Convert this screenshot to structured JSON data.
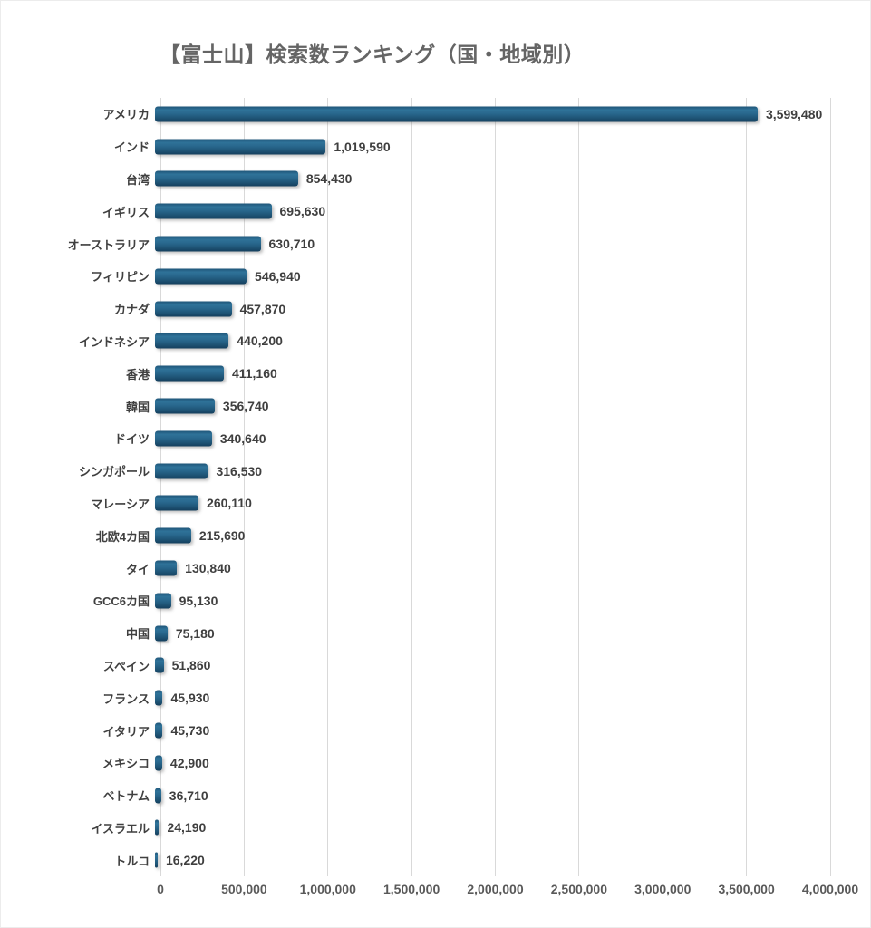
{
  "title": "【富士山】検索数ランキング（国・地域別）",
  "chart_data": {
    "type": "bar",
    "orientation": "horizontal",
    "title": "【富士山】検索数ランキング（国・地域別）",
    "xlabel": "",
    "ylabel": "",
    "xlim": [
      0,
      4000000
    ],
    "grid": "vertical major gridlines every 500,000",
    "legend_position": "none",
    "bar_color": "#26648b",
    "grid_color": "#d9d9d9",
    "categories": [
      "アメリカ",
      "インド",
      "台湾",
      "イギリス",
      "オーストラリア",
      "フィリピン",
      "カナダ",
      "インドネシア",
      "香港",
      "韓国",
      "ドイツ",
      "シンガポール",
      "マレーシア",
      "北欧4カ国",
      "タイ",
      "GCC6カ国",
      "中国",
      "スペイン",
      "フランス",
      "イタリア",
      "メキシコ",
      "ベトナム",
      "イスラエル",
      "トルコ"
    ],
    "values": [
      3599480,
      1019590,
      854430,
      695630,
      630710,
      546940,
      457870,
      440200,
      411160,
      356740,
      340640,
      316530,
      260110,
      215690,
      130840,
      95130,
      75180,
      51860,
      45930,
      45730,
      42900,
      36710,
      24190,
      16220
    ],
    "value_labels": [
      "3,599,480",
      "1,019,590",
      "854,430",
      "695,630",
      "630,710",
      "546,940",
      "457,870",
      "440,200",
      "411,160",
      "356,740",
      "340,640",
      "316,530",
      "260,110",
      "215,690",
      "130,840",
      "95,130",
      "75,180",
      "51,860",
      "45,930",
      "45,730",
      "42,900",
      "36,710",
      "24,190",
      "16,220"
    ],
    "x_tick_values": [
      0,
      500000,
      1000000,
      1500000,
      2000000,
      2500000,
      3000000,
      3500000,
      4000000
    ],
    "x_tick_labels": [
      "0",
      "500,000",
      "1,000,000",
      "1,500,000",
      "2,000,000",
      "2,500,000",
      "3,000,000",
      "3,500,000",
      "4,000,000"
    ]
  }
}
